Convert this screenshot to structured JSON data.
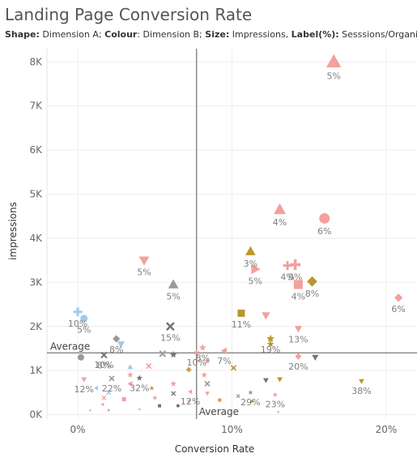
{
  "header": {
    "title": "Landing Page Conversion Rate",
    "subtitle": [
      {
        "key": "Shape:",
        "value": " Dimension A; "
      },
      {
        "key": "Colour",
        "value": ": Dimension B; "
      },
      {
        "key": "Size:",
        "value": " Impressions, "
      },
      {
        "key": "Label(%):",
        "value": " Sesssions/Organic"
      }
    ]
  },
  "chart_data": {
    "type": "scatter",
    "title": "Landing Page Conversion Rate",
    "xlabel": "Conversion Rate",
    "ylabel": "impressions",
    "xlim": [
      -0.02,
      0.22
    ],
    "ylim": [
      -100,
      8300
    ],
    "x_ticks": [
      {
        "value": 0,
        "label": "0%"
      },
      {
        "value": 0.1,
        "label": "10%"
      },
      {
        "value": 0.2,
        "label": "20%"
      }
    ],
    "y_ticks": [
      {
        "value": 0,
        "label": "0K"
      },
      {
        "value": 1000,
        "label": "1K"
      },
      {
        "value": 2000,
        "label": "2K"
      },
      {
        "value": 3000,
        "label": "3K"
      },
      {
        "value": 4000,
        "label": "4K"
      },
      {
        "value": 5000,
        "label": "5K"
      },
      {
        "value": 6000,
        "label": "6K"
      },
      {
        "value": 7000,
        "label": "7K"
      },
      {
        "value": 8000,
        "label": "8K"
      }
    ],
    "grid": true,
    "reference_lines": {
      "x": {
        "value": 0.077,
        "label": "Average"
      },
      "y": {
        "value": 1400,
        "label": "Average"
      }
    },
    "colors": {
      "pink": "#f4a09c",
      "salmon": "#ff9d9a",
      "gold": "#b9972e",
      "blue": "#9dcbeb",
      "grey": "#9e9894",
      "dark": "#7a7370",
      "orange": "#d49a4f"
    },
    "points": [
      {
        "x": 0.166,
        "y": 8000,
        "shape": "triangle",
        "color": "pink",
        "size": 8,
        "label": "5%"
      },
      {
        "x": 0.131,
        "y": 4650,
        "shape": "triangle",
        "color": "pink",
        "size": 6.5,
        "label": "4%"
      },
      {
        "x": 0.16,
        "y": 4450,
        "shape": "circle",
        "color": "pink",
        "size": 6.5,
        "label": "6%"
      },
      {
        "x": 0.043,
        "y": 3500,
        "shape": "triangle-down",
        "color": "pink",
        "size": 5.5,
        "label": "5%"
      },
      {
        "x": 0.062,
        "y": 2950,
        "shape": "triangle",
        "color": "grey",
        "size": 5.5,
        "label": "5%"
      },
      {
        "x": 0.112,
        "y": 3700,
        "shape": "triangle",
        "color": "gold",
        "size": 5.5,
        "label": "3%"
      },
      {
        "x": 0.141,
        "y": 3400,
        "shape": "plus",
        "color": "pink",
        "size": 6,
        "label": "9%"
      },
      {
        "x": 0.115,
        "y": 3300,
        "shape": "triangle-right",
        "color": "pink",
        "size": 5.5,
        "label": "5%"
      },
      {
        "x": 0.136,
        "y": 3380,
        "shape": "plus",
        "color": "pink",
        "size": 5,
        "label": "4%"
      },
      {
        "x": 0.143,
        "y": 2950,
        "shape": "square",
        "color": "pink",
        "size": 5.5,
        "label": "4%"
      },
      {
        "x": 0.152,
        "y": 3020,
        "shape": "diamond",
        "color": "gold",
        "size": 5.5,
        "label": "8%"
      },
      {
        "x": 0.208,
        "y": 2650,
        "shape": "diamond",
        "color": "pink",
        "size": 4.5,
        "label": "6%"
      },
      {
        "x": 0.106,
        "y": 2300,
        "shape": "square",
        "color": "gold",
        "size": 4.5,
        "label": "11%"
      },
      {
        "x": 0.122,
        "y": 2250,
        "shape": "triangle-down",
        "color": "pink",
        "size": 4.5,
        "label": ""
      },
      {
        "x": 0.143,
        "y": 1950,
        "shape": "triangle-down",
        "color": "pink",
        "size": 4,
        "label": "13%"
      },
      {
        "x": 0.125,
        "y": 1720,
        "shape": "star",
        "color": "gold",
        "size": 4,
        "label": "19%"
      },
      {
        "x": 0.125,
        "y": 1600,
        "shape": "star",
        "color": "gold",
        "size": 3.5,
        "label": ""
      },
      {
        "x": 0.0,
        "y": 2330,
        "shape": "plus",
        "color": "blue",
        "size": 5,
        "label": "10%"
      },
      {
        "x": 0.004,
        "y": 2180,
        "shape": "circle",
        "color": "blue",
        "size": 4.5,
        "label": "5%"
      },
      {
        "x": 0.06,
        "y": 2000,
        "shape": "cross",
        "color": "dark",
        "size": 4.5,
        "label": "15%"
      },
      {
        "x": 0.025,
        "y": 1720,
        "shape": "diamond",
        "color": "grey",
        "size": 4,
        "label": "8%"
      },
      {
        "x": 0.028,
        "y": 1600,
        "shape": "triangle-down",
        "color": "blue",
        "size": 4,
        "label": ""
      },
      {
        "x": 0.002,
        "y": 1300,
        "shape": "circle",
        "color": "grey",
        "size": 4,
        "label": ""
      },
      {
        "x": 0.017,
        "y": 1350,
        "shape": "cross",
        "color": "dark",
        "size": 3.5,
        "label": "8%"
      },
      {
        "x": 0.055,
        "y": 1380,
        "shape": "cross",
        "color": "grey",
        "size": 3.5,
        "label": ""
      },
      {
        "x": 0.062,
        "y": 1360,
        "shape": "star",
        "color": "dark",
        "size": 3.5,
        "label": ""
      },
      {
        "x": 0.081,
        "y": 1520,
        "shape": "star",
        "color": "pink",
        "size": 3.5,
        "label": "8%"
      },
      {
        "x": 0.077,
        "y": 1410,
        "shape": "star",
        "color": "pink",
        "size": 3,
        "label": "10%"
      },
      {
        "x": 0.095,
        "y": 1450,
        "shape": "triangle-left",
        "color": "pink",
        "size": 3.5,
        "label": "7%"
      },
      {
        "x": 0.084,
        "y": 1210,
        "shape": "star",
        "color": "pink",
        "size": 3,
        "label": ""
      },
      {
        "x": 0.143,
        "y": 1320,
        "shape": "diamond",
        "color": "pink",
        "size": 3.5,
        "label": "20%"
      },
      {
        "x": 0.154,
        "y": 1300,
        "shape": "triangle-down",
        "color": "dark",
        "size": 3.5,
        "label": ""
      },
      {
        "x": 0.017,
        "y": 1350,
        "shape": "cross",
        "color": "dark",
        "size": 3,
        "label": "10%"
      },
      {
        "x": 0.034,
        "y": 1080,
        "shape": "triangle",
        "color": "blue",
        "size": 3,
        "label": ""
      },
      {
        "x": 0.046,
        "y": 1100,
        "shape": "cross",
        "color": "pink",
        "size": 3,
        "label": ""
      },
      {
        "x": 0.072,
        "y": 1020,
        "shape": "diamond",
        "color": "orange",
        "size": 3,
        "label": ""
      },
      {
        "x": 0.101,
        "y": 1060,
        "shape": "cross",
        "color": "gold",
        "size": 3,
        "label": ""
      },
      {
        "x": 0.082,
        "y": 900,
        "shape": "star",
        "color": "pink",
        "size": 3,
        "label": ""
      },
      {
        "x": 0.004,
        "y": 800,
        "shape": "triangle-down",
        "color": "pink",
        "size": 3,
        "label": "12%"
      },
      {
        "x": 0.022,
        "y": 820,
        "shape": "cross",
        "color": "grey",
        "size": 3,
        "label": "22%"
      },
      {
        "x": 0.034,
        "y": 900,
        "shape": "star",
        "color": "pink",
        "size": 3,
        "label": ""
      },
      {
        "x": 0.04,
        "y": 830,
        "shape": "star",
        "color": "dark",
        "size": 3,
        "label": "32%"
      },
      {
        "x": 0.062,
        "y": 700,
        "shape": "star",
        "color": "pink",
        "size": 3,
        "label": ""
      },
      {
        "x": 0.034,
        "y": 700,
        "shape": "triangle-left",
        "color": "pink",
        "size": 3,
        "label": ""
      },
      {
        "x": 0.084,
        "y": 700,
        "shape": "cross",
        "color": "grey",
        "size": 3,
        "label": ""
      },
      {
        "x": 0.122,
        "y": 780,
        "shape": "triangle-down",
        "color": "dark",
        "size": 3,
        "label": ""
      },
      {
        "x": 0.131,
        "y": 800,
        "shape": "triangle-down",
        "color": "gold",
        "size": 3,
        "label": ""
      },
      {
        "x": 0.184,
        "y": 760,
        "shape": "triangle-down",
        "color": "gold",
        "size": 3,
        "label": "38%"
      },
      {
        "x": 0.012,
        "y": 600,
        "shape": "triangle-left",
        "color": "blue",
        "size": 2.5,
        "label": ""
      },
      {
        "x": 0.02,
        "y": 500,
        "shape": "cross",
        "color": "blue",
        "size": 2.5,
        "label": ""
      },
      {
        "x": 0.048,
        "y": 600,
        "shape": "star",
        "color": "orange",
        "size": 2.5,
        "label": ""
      },
      {
        "x": 0.062,
        "y": 480,
        "shape": "cross",
        "color": "dark",
        "size": 2.5,
        "label": ""
      },
      {
        "x": 0.073,
        "y": 520,
        "shape": "triangle-left",
        "color": "pink",
        "size": 2.5,
        "label": "12%"
      },
      {
        "x": 0.084,
        "y": 480,
        "shape": "triangle-down",
        "color": "pink",
        "size": 2.5,
        "label": ""
      },
      {
        "x": 0.112,
        "y": 500,
        "shape": "star",
        "color": "grey",
        "size": 2.5,
        "label": "29%"
      },
      {
        "x": 0.128,
        "y": 450,
        "shape": "star",
        "color": "pink",
        "size": 2.5,
        "label": "23%"
      },
      {
        "x": 0.017,
        "y": 380,
        "shape": "cross",
        "color": "pink",
        "size": 2.5,
        "label": ""
      },
      {
        "x": 0.03,
        "y": 350,
        "shape": "square",
        "color": "pink",
        "size": 2.5,
        "label": ""
      },
      {
        "x": 0.05,
        "y": 380,
        "shape": "star",
        "color": "pink",
        "size": 2.5,
        "label": ""
      },
      {
        "x": 0.072,
        "y": 310,
        "shape": "triangle-left",
        "color": "pink",
        "size": 2,
        "label": ""
      },
      {
        "x": 0.092,
        "y": 330,
        "shape": "square",
        "color": "orange",
        "size": 2,
        "label": ""
      },
      {
        "x": 0.104,
        "y": 420,
        "shape": "cross",
        "color": "grey",
        "size": 2,
        "label": ""
      },
      {
        "x": 0.113,
        "y": 300,
        "shape": "star",
        "color": "gold",
        "size": 2,
        "label": ""
      },
      {
        "x": 0.053,
        "y": 200,
        "shape": "square",
        "color": "dark",
        "size": 2,
        "label": ""
      },
      {
        "x": 0.065,
        "y": 200,
        "shape": "circle",
        "color": "dark",
        "size": 2,
        "label": ""
      },
      {
        "x": 0.016,
        "y": 230,
        "shape": "triangle-left",
        "color": "pink",
        "size": 2,
        "label": ""
      },
      {
        "x": 0.008,
        "y": 100,
        "shape": "star",
        "color": "pink",
        "size": 1.5,
        "label": ""
      },
      {
        "x": 0.02,
        "y": 100,
        "shape": "star",
        "color": "grey",
        "size": 1.5,
        "label": ""
      },
      {
        "x": 0.04,
        "y": 120,
        "shape": "star",
        "color": "pink",
        "size": 1.5,
        "label": ""
      },
      {
        "x": 0.08,
        "y": 80,
        "shape": "star",
        "color": "pink",
        "size": 1.5,
        "label": ""
      },
      {
        "x": 0.098,
        "y": 100,
        "shape": "star",
        "color": "grey",
        "size": 1.5,
        "label": ""
      },
      {
        "x": 0.13,
        "y": 60,
        "shape": "star",
        "color": "pink",
        "size": 1.5,
        "label": ""
      }
    ]
  }
}
